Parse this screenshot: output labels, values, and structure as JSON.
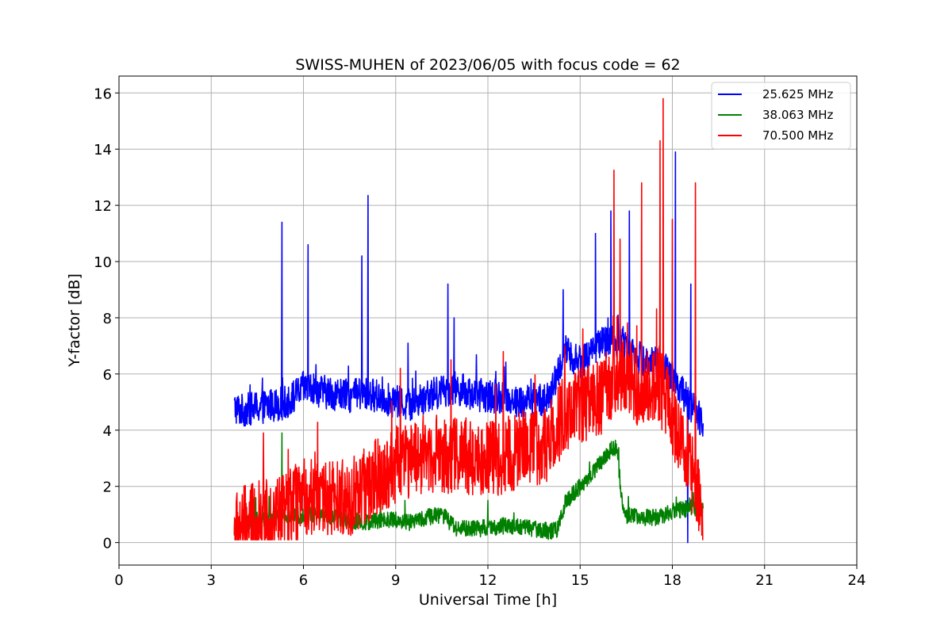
{
  "chart_data": {
    "type": "line",
    "title": "SWISS-MUHEN of 2023/06/05 with focus code = 62",
    "xlabel": "Universal Time [h]",
    "ylabel": "Y-factor [dB]",
    "xlim": [
      0,
      24
    ],
    "ylim": [
      -0.8,
      16.6
    ],
    "xticks": [
      0,
      3,
      6,
      9,
      12,
      15,
      18,
      21,
      24
    ],
    "yticks": [
      0,
      2,
      4,
      6,
      8,
      10,
      12,
      14,
      16
    ],
    "grid": true,
    "legend_position": "top-right",
    "series": [
      {
        "name": "25.625 MHz",
        "color": "#0000ff",
        "x": [
          3.75,
          4.0,
          4.5,
          5.0,
          5.5,
          6.0,
          6.5,
          7.0,
          7.5,
          8.0,
          8.5,
          9.0,
          9.5,
          10.0,
          10.5,
          11.0,
          11.5,
          12.0,
          12.5,
          13.0,
          13.5,
          14.0,
          14.5,
          15.0,
          15.5,
          16.0,
          16.5,
          17.0,
          17.5,
          18.0,
          18.5,
          19.0
        ],
        "values": [
          4.8,
          4.7,
          4.8,
          4.9,
          5.0,
          5.5,
          5.4,
          5.3,
          5.2,
          5.3,
          5.2,
          5.0,
          4.9,
          5.2,
          5.4,
          5.5,
          5.3,
          5.2,
          5.2,
          5.0,
          5.1,
          5.1,
          6.8,
          6.4,
          7.0,
          7.2,
          7.1,
          6.5,
          6.4,
          6.0,
          5.0,
          4.3
        ],
        "spikes": [
          [
            5.3,
            11.4
          ],
          [
            6.15,
            10.6
          ],
          [
            7.9,
            10.2
          ],
          [
            8.1,
            12.35
          ],
          [
            9.4,
            7.1
          ],
          [
            10.7,
            9.2
          ],
          [
            10.9,
            8.0
          ],
          [
            14.45,
            9.0
          ],
          [
            15.5,
            11.0
          ],
          [
            16.0,
            11.8
          ],
          [
            16.6,
            11.8
          ],
          [
            18.1,
            13.9
          ],
          [
            18.6,
            9.2
          ],
          [
            18.5,
            0.0
          ]
        ],
        "noise": 0.6
      },
      {
        "name": "38.063 MHz",
        "color": "#008000",
        "x": [
          3.75,
          4.0,
          4.5,
          5.0,
          5.5,
          6.0,
          6.5,
          7.0,
          7.5,
          8.0,
          8.5,
          9.0,
          9.5,
          10.0,
          10.5,
          11.0,
          11.5,
          12.0,
          12.5,
          13.0,
          13.5,
          14.0,
          14.3,
          14.5,
          15.0,
          15.5,
          16.0,
          16.2,
          16.4,
          17.0,
          17.5,
          18.0,
          18.5,
          19.0
        ],
        "values": [
          0.5,
          0.7,
          0.8,
          0.9,
          0.9,
          1.0,
          1.0,
          0.9,
          0.8,
          0.7,
          0.8,
          0.8,
          0.7,
          0.9,
          1.0,
          0.5,
          0.5,
          0.5,
          0.6,
          0.6,
          0.5,
          0.4,
          0.5,
          1.4,
          2.0,
          2.6,
          3.3,
          3.4,
          1.0,
          0.9,
          0.9,
          1.1,
          1.2,
          1.3
        ],
        "spikes": [
          [
            4.45,
            1.6
          ],
          [
            5.3,
            3.9
          ],
          [
            9.3,
            1.5
          ],
          [
            12.0,
            1.5
          ]
        ],
        "noise": 0.3
      },
      {
        "name": "70.500 MHz",
        "color": "#ff0000",
        "x": [
          3.75,
          4.0,
          4.5,
          5.0,
          5.5,
          6.0,
          6.5,
          7.0,
          7.5,
          8.0,
          8.5,
          9.0,
          9.5,
          10.0,
          10.5,
          11.0,
          11.5,
          12.0,
          12.5,
          13.0,
          13.5,
          14.0,
          14.5,
          15.0,
          15.5,
          16.0,
          16.5,
          17.0,
          17.5,
          18.0,
          18.5,
          19.0
        ],
        "values": [
          0.4,
          0.6,
          0.8,
          1.0,
          1.2,
          1.6,
          1.7,
          1.5,
          1.6,
          2.0,
          2.4,
          2.8,
          3.0,
          3.2,
          3.1,
          3.1,
          3.0,
          3.0,
          3.1,
          3.3,
          3.4,
          3.6,
          4.6,
          4.9,
          5.0,
          5.6,
          6.0,
          5.4,
          5.8,
          4.5,
          3.0,
          1.0
        ],
        "spikes": [
          [
            4.7,
            3.9
          ],
          [
            9.15,
            6.2
          ],
          [
            10.8,
            6.5
          ],
          [
            12.5,
            6.8
          ],
          [
            14.5,
            7.0
          ],
          [
            16.1,
            13.25
          ],
          [
            16.3,
            10.8
          ],
          [
            17.0,
            12.8
          ],
          [
            17.6,
            14.3
          ],
          [
            17.7,
            15.8
          ],
          [
            18.0,
            11.5
          ],
          [
            18.75,
            12.8
          ]
        ],
        "noise": 1.4
      }
    ]
  }
}
